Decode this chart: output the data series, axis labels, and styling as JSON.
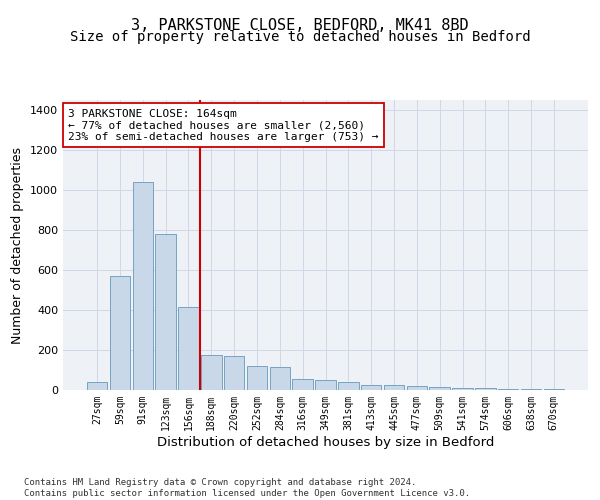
{
  "title_line1": "3, PARKSTONE CLOSE, BEDFORD, MK41 8BD",
  "title_line2": "Size of property relative to detached houses in Bedford",
  "xlabel": "Distribution of detached houses by size in Bedford",
  "ylabel": "Number of detached properties",
  "footnote": "Contains HM Land Registry data © Crown copyright and database right 2024.\nContains public sector information licensed under the Open Government Licence v3.0.",
  "bar_labels": [
    "27sqm",
    "59sqm",
    "91sqm",
    "123sqm",
    "156sqm",
    "188sqm",
    "220sqm",
    "252sqm",
    "284sqm",
    "316sqm",
    "349sqm",
    "381sqm",
    "413sqm",
    "445sqm",
    "477sqm",
    "509sqm",
    "541sqm",
    "574sqm",
    "606sqm",
    "638sqm",
    "670sqm"
  ],
  "bar_values": [
    40,
    570,
    1040,
    780,
    415,
    175,
    170,
    120,
    115,
    55,
    50,
    40,
    25,
    25,
    20,
    15,
    10,
    10,
    5,
    5,
    3
  ],
  "bar_color": "#c8d8e8",
  "bar_edge_color": "#6699bb",
  "grid_color": "#d0d8e8",
  "bg_color": "#eef2f7",
  "annotation_box_text": "3 PARKSTONE CLOSE: 164sqm\n← 77% of detached houses are smaller (2,560)\n23% of semi-detached houses are larger (753) →",
  "vline_color": "#cc0000",
  "annotation_box_color": "#ffffff",
  "annotation_box_edge": "#cc0000",
  "ylim": [
    0,
    1450
  ],
  "yticks": [
    0,
    200,
    400,
    600,
    800,
    1000,
    1200,
    1400
  ],
  "title_fontsize": 11,
  "subtitle_fontsize": 10,
  "annotation_fontsize": 8,
  "ylabel_fontsize": 9,
  "xlabel_fontsize": 9.5,
  "ytick_fontsize": 8,
  "xtick_fontsize": 7,
  "footnote_fontsize": 6.5
}
